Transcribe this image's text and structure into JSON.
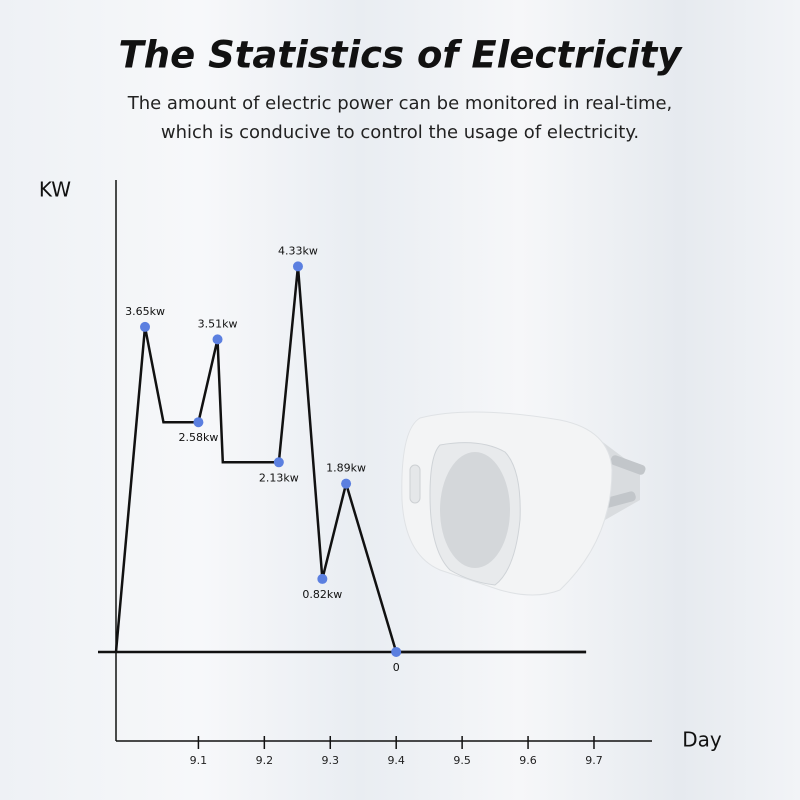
{
  "chart_data": {
    "type": "line",
    "title": "The Statistics of Electricity",
    "subtitle": [
      "The amount of electric power can be monitored in real-time,",
      "which is conducive to control the usage of electricity."
    ],
    "y_label": "KW",
    "x_label": "Day",
    "x": [
      8.975,
      9.019,
      9.047,
      9.1,
      9.129,
      9.137,
      9.222,
      9.251,
      9.288,
      9.324,
      9.4,
      9.688
    ],
    "values": [
      0,
      3.65,
      2.58,
      2.58,
      3.51,
      2.13,
      2.13,
      4.33,
      0.82,
      1.89,
      0,
      0
    ],
    "value_labels": [
      null,
      "3.65kw",
      null,
      "2.58kw",
      "3.51kw",
      null,
      "2.13kw",
      "4.33kw",
      "0.82kw",
      "1.89kw",
      "0",
      null
    ],
    "color": "#111111",
    "marker_color": "#5b7fe0",
    "xlim": [
      8.975,
      9.788
    ],
    "xticks": [
      9.1,
      9.2,
      9.3,
      9.4,
      9.5,
      9.6,
      9.7
    ],
    "ylim": [
      -1,
      5.3
    ]
  }
}
